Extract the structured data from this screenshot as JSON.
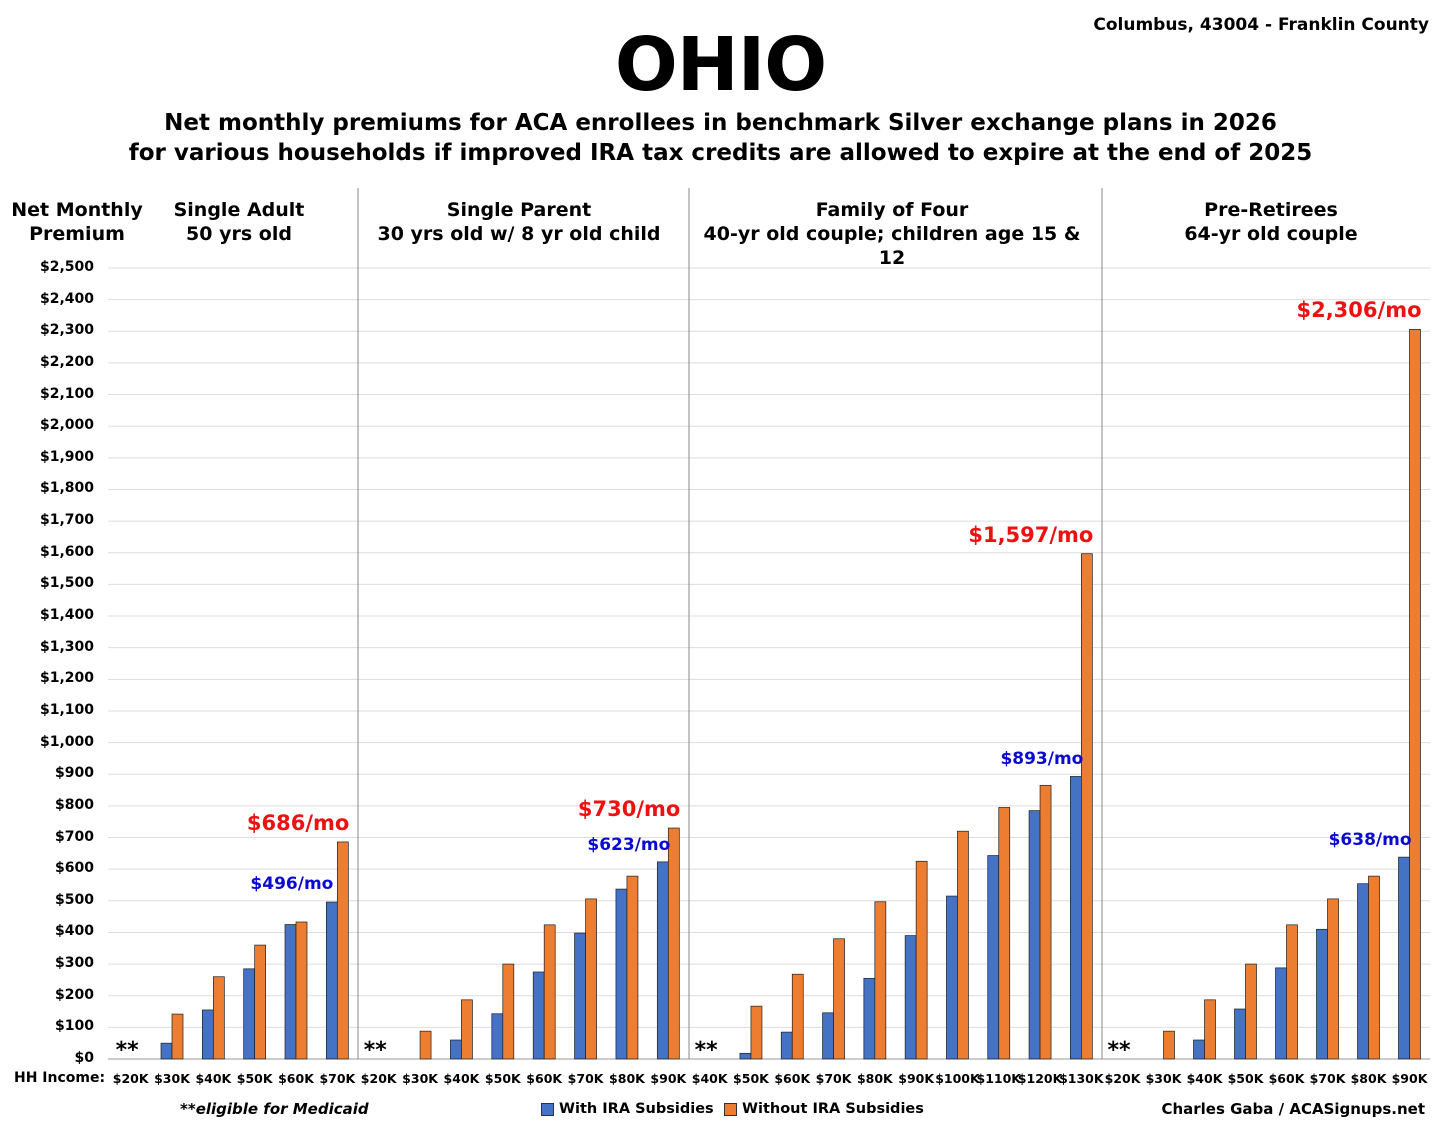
{
  "header": {
    "title": "OHIO",
    "location": "Columbus, 43004 - Franklin County",
    "subtitle_line1": "Net monthly premiums for ACA enrollees in benchmark Silver exchange plans in 2026",
    "subtitle_line2": "for various households if improved IRA tax credits are allowed to expire at the end of 2025"
  },
  "footer": {
    "hh_income_label": "HH Income:",
    "footnote": "**eligible for Medicaid",
    "credit": "Charles Gaba / ACASignups.net"
  },
  "colors": {
    "with": "#4472c4",
    "without": "#ed7d31",
    "annotation_red": "#ee1111",
    "annotation_blue": "#0a0ad0"
  },
  "chart_data": {
    "type": "bar",
    "ylabel": "Net Monthly Premium",
    "ylim": [
      0,
      2500
    ],
    "ytick_step": 100,
    "yticks": [
      "$0",
      "$100",
      "$200",
      "$300",
      "$400",
      "$500",
      "$600",
      "$700",
      "$800",
      "$900",
      "$1,000",
      "$1,100",
      "$1,200",
      "$1,300",
      "$1,400",
      "$1,500",
      "$1,600",
      "$1,700",
      "$1,800",
      "$1,900",
      "$2,000",
      "$2,100",
      "$2,200",
      "$2,300",
      "$2,400",
      "$2,500"
    ],
    "grid": true,
    "legend_position": "bottom",
    "legend": [
      "With IRA Subsidies",
      "Without IRA Subsidies"
    ],
    "groups": [
      {
        "label1": "Single Adult",
        "label2": "50 yrs old",
        "categories": [
          "$20K",
          "$30K",
          "$40K",
          "$50K",
          "$60K",
          "$70K"
        ],
        "with_ira": [
          0,
          50,
          155,
          285,
          425,
          496
        ],
        "without_ira": [
          0,
          142,
          260,
          360,
          433,
          686
        ],
        "medicaid_marker": "**",
        "annotation_red": "$686/mo",
        "annotation_blue": "$496/mo"
      },
      {
        "label1": "Single Parent",
        "label2": "30 yrs old w/ 8 yr old child",
        "categories": [
          "$20K",
          "$30K",
          "$40K",
          "$50K",
          "$60K",
          "$70K",
          "$80K",
          "$90K"
        ],
        "with_ira": [
          0,
          0,
          60,
          143,
          275,
          398,
          537,
          623
        ],
        "without_ira": [
          0,
          88,
          187,
          300,
          424,
          506,
          578,
          730
        ],
        "medicaid_marker": "**",
        "annotation_red": "$730/mo",
        "annotation_blue": "$623/mo"
      },
      {
        "label1": "Family of Four",
        "label2": "40-yr old couple; children age 15 & 12",
        "categories": [
          "$40K",
          "$50K",
          "$60K",
          "$70K",
          "$80K",
          "$90K",
          "$100K",
          "$110K",
          "$120K",
          "$130K"
        ],
        "with_ira": [
          0,
          18,
          85,
          146,
          255,
          390,
          515,
          643,
          785,
          893
        ],
        "without_ira": [
          0,
          167,
          268,
          380,
          497,
          625,
          720,
          795,
          865,
          1597
        ],
        "medicaid_marker": "**",
        "annotation_red": "$1,597/mo",
        "annotation_blue": "$893/mo"
      },
      {
        "label1": "Pre-Retirees",
        "label2": "64-yr old couple",
        "categories": [
          "$20K",
          "$30K",
          "$40K",
          "$50K",
          "$60K",
          "$70K",
          "$80K",
          "$90K"
        ],
        "with_ira": [
          0,
          0,
          60,
          158,
          288,
          410,
          554,
          638
        ],
        "without_ira": [
          0,
          88,
          187,
          300,
          424,
          506,
          578,
          2306
        ],
        "medicaid_marker": "**",
        "annotation_red": "$2,306/mo",
        "annotation_blue": "$638/mo"
      }
    ]
  }
}
